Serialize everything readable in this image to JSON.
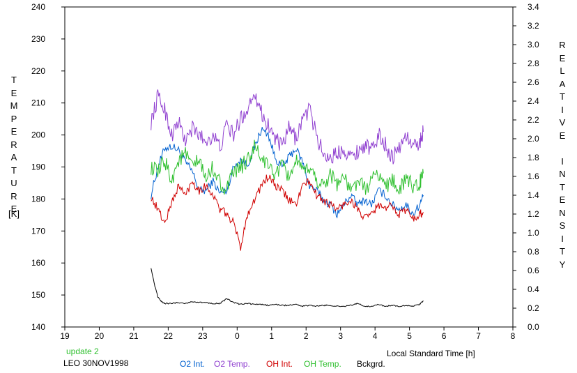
{
  "chart_data": {
    "type": "line",
    "title": "",
    "xlabel": "Local Standard Time [h]",
    "ylabel_left": "TEMPERATURE",
    "ylabel_left_unit": "[K]",
    "ylabel_right": "RELATIVE INTENSITY",
    "x_range": [
      19,
      32
    ],
    "x_tick_labels": [
      "19",
      "20",
      "21",
      "22",
      "23",
      "0",
      "1",
      "2",
      "3",
      "4",
      "5",
      "6",
      "7",
      "8"
    ],
    "ylim_left": [
      140,
      240
    ],
    "left_ticks": [
      140,
      150,
      160,
      170,
      180,
      190,
      200,
      210,
      220,
      230,
      240
    ],
    "ylim_right": [
      0.0,
      3.4
    ],
    "right_ticks": [
      "0.0",
      "0.2",
      "0.4",
      "0.6",
      "0.8",
      "1.0",
      "1.2",
      "1.4",
      "1.6",
      "1.8",
      "2.0",
      "2.2",
      "2.4",
      "2.6",
      "2.8",
      "3.0",
      "3.2",
      "3.4"
    ],
    "grid": false,
    "legend_position": "bottom",
    "annotations": {
      "update": "update 2",
      "station": "LEO 30NOV1998"
    },
    "series": [
      {
        "name": "O2 Int.",
        "axis": "right",
        "color": "#0060d0",
        "x": [
          21.5,
          21.7,
          21.9,
          22.1,
          22.3,
          22.5,
          22.7,
          22.9,
          23.1,
          23.3,
          23.5,
          23.7,
          23.9,
          24.1,
          24.3,
          24.5,
          24.7,
          24.9,
          25.1,
          25.3,
          25.5,
          25.7,
          25.9,
          26.1,
          26.3,
          26.5,
          26.7,
          26.9,
          27.1,
          27.3,
          27.5,
          27.7,
          27.9,
          28.1,
          28.3,
          28.5,
          28.7,
          28.9,
          29.1,
          29.3,
          29.4
        ],
        "values": [
          1.4,
          1.7,
          1.9,
          1.92,
          1.88,
          1.75,
          1.65,
          1.45,
          1.45,
          1.55,
          1.42,
          1.45,
          1.7,
          1.78,
          1.72,
          1.9,
          2.1,
          2.05,
          1.8,
          1.7,
          1.8,
          1.9,
          1.75,
          1.5,
          1.45,
          1.35,
          1.3,
          1.2,
          1.3,
          1.4,
          1.3,
          1.35,
          1.3,
          1.45,
          1.4,
          1.3,
          1.25,
          1.3,
          1.2,
          1.3,
          1.4
        ]
      },
      {
        "name": "O2 Temp.",
        "axis": "left",
        "color": "#9040d0",
        "x": [
          21.5,
          21.7,
          21.9,
          22.1,
          22.3,
          22.5,
          22.7,
          22.9,
          23.1,
          23.3,
          23.5,
          23.7,
          23.9,
          24.1,
          24.3,
          24.5,
          24.7,
          24.9,
          25.1,
          25.3,
          25.5,
          25.7,
          25.9,
          26.1,
          26.3,
          26.5,
          26.7,
          26.9,
          27.1,
          27.3,
          27.5,
          27.7,
          27.9,
          28.1,
          28.3,
          28.5,
          28.7,
          28.9,
          29.1,
          29.3,
          29.4
        ],
        "values": [
          204,
          212,
          208,
          200,
          204,
          198,
          202,
          200,
          198,
          200,
          196,
          203,
          200,
          205,
          208,
          214,
          207,
          203,
          199,
          196,
          202,
          199,
          205,
          208,
          200,
          194,
          193,
          194,
          196,
          193,
          195,
          197,
          195,
          200,
          197,
          193,
          196,
          200,
          196,
          198,
          201
        ]
      },
      {
        "name": "OH Int.",
        "axis": "right",
        "color": "#d00000",
        "x": [
          21.5,
          21.7,
          21.9,
          22.1,
          22.3,
          22.5,
          22.7,
          22.9,
          23.1,
          23.3,
          23.5,
          23.7,
          23.9,
          24.1,
          24.3,
          24.5,
          24.7,
          24.9,
          25.1,
          25.3,
          25.5,
          25.7,
          25.9,
          26.1,
          26.3,
          26.5,
          26.7,
          26.9,
          27.1,
          27.3,
          27.5,
          27.7,
          27.9,
          28.1,
          28.3,
          28.5,
          28.7,
          28.9,
          29.1,
          29.3,
          29.4
        ],
        "values": [
          1.38,
          1.25,
          1.1,
          1.32,
          1.5,
          1.4,
          1.55,
          1.45,
          1.5,
          1.4,
          1.25,
          1.2,
          1.1,
          0.85,
          1.2,
          1.35,
          1.5,
          1.6,
          1.5,
          1.45,
          1.35,
          1.3,
          1.5,
          1.55,
          1.4,
          1.35,
          1.3,
          1.25,
          1.3,
          1.35,
          1.25,
          1.15,
          1.2,
          1.3,
          1.25,
          1.3,
          1.2,
          1.25,
          1.15,
          1.2,
          1.22
        ]
      },
      {
        "name": "OH Temp.",
        "axis": "left",
        "color": "#30c030",
        "x": [
          21.5,
          21.7,
          21.9,
          22.1,
          22.3,
          22.5,
          22.7,
          22.9,
          23.1,
          23.3,
          23.5,
          23.7,
          23.9,
          24.1,
          24.3,
          24.5,
          24.7,
          24.9,
          25.1,
          25.3,
          25.5,
          25.7,
          25.9,
          26.1,
          26.3,
          26.5,
          26.7,
          26.9,
          27.1,
          27.3,
          27.5,
          27.7,
          27.9,
          28.1,
          28.3,
          28.5,
          28.7,
          28.9,
          29.1,
          29.3,
          29.4
        ],
        "values": [
          190,
          188,
          192,
          186,
          192,
          194,
          190,
          192,
          186,
          190,
          185,
          183,
          188,
          190,
          192,
          196,
          193,
          190,
          188,
          190,
          187,
          192,
          188,
          190,
          186,
          184,
          188,
          185,
          187,
          182,
          186,
          183,
          186,
          188,
          184,
          186,
          183,
          186,
          184,
          185,
          188
        ]
      },
      {
        "name": "Bckgrd.",
        "axis": "right",
        "color": "#000000",
        "x": [
          21.5,
          21.6,
          21.7,
          21.8,
          21.9,
          22.1,
          22.3,
          22.5,
          22.7,
          22.9,
          23.1,
          23.3,
          23.5,
          23.7,
          23.9,
          24.1,
          24.3,
          24.5,
          24.7,
          24.9,
          25.1,
          25.3,
          25.5,
          25.7,
          25.9,
          26.1,
          26.3,
          26.5,
          26.7,
          26.9,
          27.1,
          27.3,
          27.5,
          27.7,
          27.9,
          28.1,
          28.3,
          28.5,
          28.7,
          28.9,
          29.1,
          29.3,
          29.4
        ],
        "values": [
          0.63,
          0.45,
          0.32,
          0.27,
          0.25,
          0.25,
          0.26,
          0.25,
          0.27,
          0.26,
          0.26,
          0.25,
          0.25,
          0.3,
          0.26,
          0.24,
          0.25,
          0.24,
          0.24,
          0.23,
          0.24,
          0.23,
          0.23,
          0.24,
          0.22,
          0.23,
          0.22,
          0.23,
          0.23,
          0.22,
          0.22,
          0.23,
          0.25,
          0.22,
          0.22,
          0.24,
          0.22,
          0.23,
          0.22,
          0.23,
          0.22,
          0.24,
          0.28
        ]
      }
    ]
  }
}
